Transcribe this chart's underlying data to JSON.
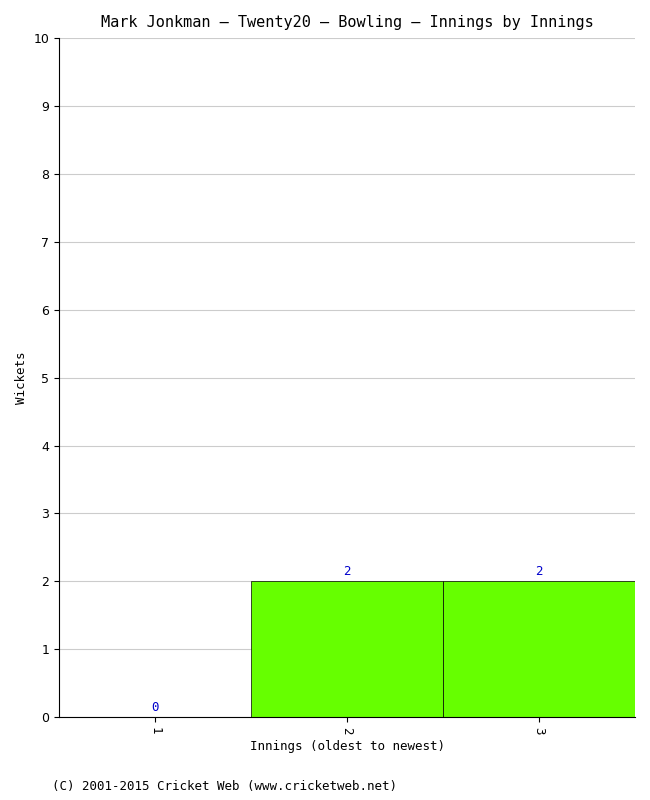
{
  "title": "Mark Jonkman – Twenty20 – Bowling – Innings by Innings",
  "xlabel": "Innings (oldest to newest)",
  "ylabel": "Wickets",
  "categories": [
    1,
    2,
    3
  ],
  "values": [
    0,
    2,
    2
  ],
  "bar_color": "#66ff00",
  "bar_edge_color": "#000000",
  "ylim": [
    0,
    10
  ],
  "yticks": [
    0,
    1,
    2,
    3,
    4,
    5,
    6,
    7,
    8,
    9,
    10
  ],
  "xtick_labels": [
    "1",
    "2",
    "3"
  ],
  "background_color": "#ffffff",
  "grid_color": "#cccccc",
  "label_color": "#0000cc",
  "footer": "(C) 2001-2015 Cricket Web (www.cricketweb.net)",
  "title_fontsize": 11,
  "axis_fontsize": 9,
  "label_fontsize": 9,
  "footer_fontsize": 9,
  "xlim": [
    0.5,
    3.5
  ]
}
